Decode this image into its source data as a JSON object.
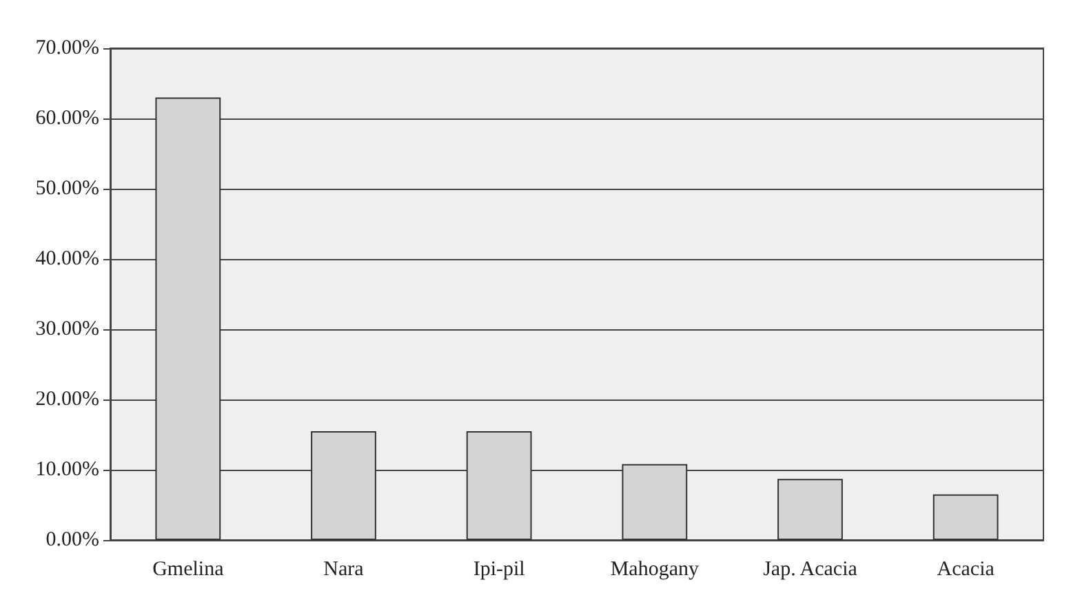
{
  "chart_data": {
    "type": "bar",
    "categories": [
      "Gmelina",
      "Nara",
      "Ipi-pil",
      "Mahogany",
      "Jap. Acacia",
      "Acacia"
    ],
    "values": [
      63,
      15.5,
      15.5,
      10.8,
      8.7,
      6.5
    ],
    "color": "#d4d4d4",
    "ylim": [
      0,
      70
    ],
    "yticks": [
      {
        "value": 0,
        "label": "0.00%"
      },
      {
        "value": 10,
        "label": "10.00%"
      },
      {
        "value": 20,
        "label": "20.00%"
      },
      {
        "value": 30,
        "label": "30.00%"
      },
      {
        "value": 40,
        "label": "40.00%"
      },
      {
        "value": 50,
        "label": "50.00%"
      },
      {
        "value": 60,
        "label": "60.00%"
      },
      {
        "value": 70,
        "label": "70.00%"
      }
    ],
    "grid": "y"
  }
}
